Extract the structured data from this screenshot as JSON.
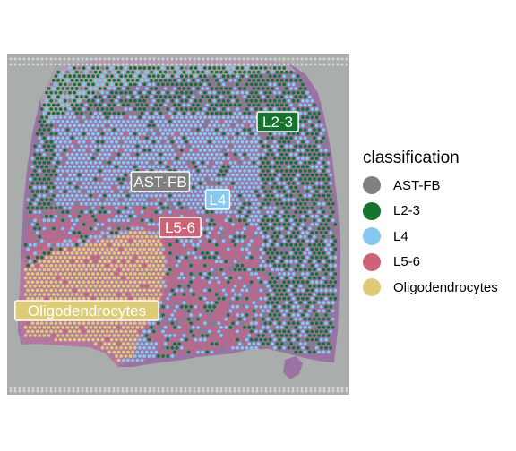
{
  "chart_data": {
    "type": "scatter",
    "title": "",
    "xlabel": "",
    "ylabel": "",
    "grid": false,
    "background_image": "H&E stained brain tissue section",
    "legend": {
      "title": "classification",
      "placement": "right",
      "entries": [
        {
          "label": "AST-FB",
          "color": "#808080"
        },
        {
          "label": "L2-3",
          "color": "#13732f"
        },
        {
          "label": "L4",
          "color": "#87c9ee"
        },
        {
          "label": "L5-6",
          "color": "#cc6478"
        },
        {
          "label": "Oligodendrocytes",
          "color": "#ddcb77"
        }
      ]
    },
    "cluster_labels": [
      {
        "label": "L2-3",
        "color": "#13732f"
      },
      {
        "label": "AST-FB",
        "color": "#808080"
      },
      {
        "label": "L4",
        "color": "#87c9ee"
      },
      {
        "label": "L5-6",
        "color": "#cc6478"
      },
      {
        "label": "Oligodendrocytes",
        "color": "#ddcb77"
      }
    ]
  },
  "colors": {
    "slide_background": "#a9adab",
    "tissue_purple": "#9a72a4",
    "tissue_pink": "#b9789f",
    "fiducial_gray": "#d3d6d4"
  }
}
